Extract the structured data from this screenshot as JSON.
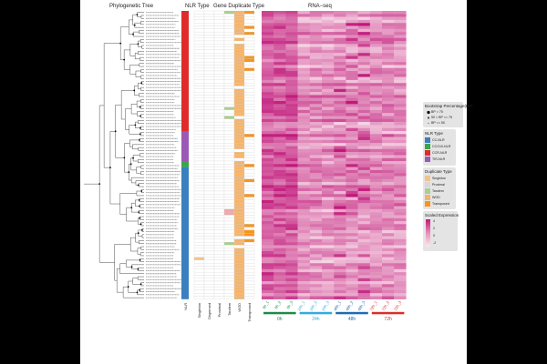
{
  "titles": {
    "tree": "Phylogenetic Tree",
    "nlr": "NLR Type",
    "dup": "Gene Duplicate Type",
    "rna": "RNA−seq"
  },
  "colors": {
    "frame": "#000000",
    "cc_nlr": "#3a7fbf",
    "ccg10_nlr": "#3aa648",
    "ccr_nlr": "#e02b2b",
    "tir_nlr": "#9b59b6",
    "singleton": "#f2c38c",
    "proximal": "#d8d8d8",
    "tandem": "#a8d08d",
    "wgd": "#f5b46b",
    "transposed": "#f7941d",
    "dispersed_pink": "#f2a6a6",
    "heat_low": "#f7e1ea",
    "heat_high": "#c0187a",
    "bar_0h": "#1e8a4a",
    "bar_24h": "#35a9e0",
    "bar_48h": "#1f6cb0",
    "bar_72h": "#d73027"
  },
  "chart_data": {
    "type": "heatmap",
    "title": "RNA−seq",
    "row_count": 96,
    "columns": [
      "0h_1",
      "0h_2",
      "0h_3",
      "24h_1",
      "24h_2",
      "24h_3",
      "48h_1",
      "48h_2",
      "48h_3",
      "72h_1",
      "72h_2",
      "72h_3"
    ],
    "groups": [
      {
        "name": "0h",
        "color_key": "bar_0h"
      },
      {
        "name": "24h",
        "color_key": "bar_24h"
      },
      {
        "name": "48h",
        "color_key": "bar_48h"
      },
      {
        "name": "72h",
        "color_key": "bar_72h"
      }
    ],
    "nlr_type_axis_label": "NLR",
    "nlr_type_segments": [
      {
        "type": "CCR-NLR",
        "rows": 40
      },
      {
        "type": "TIR-NLR",
        "rows": 10
      },
      {
        "type": "CCG10-NLR",
        "rows": 2
      },
      {
        "type": "CC-NLR",
        "rows": 44
      }
    ],
    "duplicate_columns": [
      "Singleton",
      "Dispersed",
      "Proximal",
      "Tandem",
      "WGD",
      "Transposed"
    ],
    "scale": {
      "title": "Scaled Expression",
      "ticks": [
        "4",
        "2",
        "0",
        "-2"
      ]
    }
  },
  "legends": {
    "bootstrap": {
      "title": "Bootstrap Percentage(BP)",
      "items": [
        "BP > 75",
        "50 < BP <= 75",
        "BP <= 50"
      ]
    },
    "nlr": {
      "title": "NLR Type",
      "items": [
        {
          "label": "CC-NLR",
          "color_key": "cc_nlr"
        },
        {
          "label": "CCG10-NLR",
          "color_key": "ccg10_nlr"
        },
        {
          "label": "CCR-NLR",
          "color_key": "ccr_nlr"
        },
        {
          "label": "TIR-NLR",
          "color_key": "tir_nlr"
        }
      ]
    },
    "duplicate": {
      "title": "Duplicate Type",
      "items": [
        {
          "label": "Singleton",
          "color_key": "singleton"
        },
        {
          "label": "Proximal",
          "color_key": "proximal"
        },
        {
          "label": "Tandem",
          "color_key": "tandem"
        },
        {
          "label": "WGD",
          "color_key": "wgd"
        },
        {
          "label": "Transposed",
          "color_key": "transposed"
        }
      ]
    }
  }
}
